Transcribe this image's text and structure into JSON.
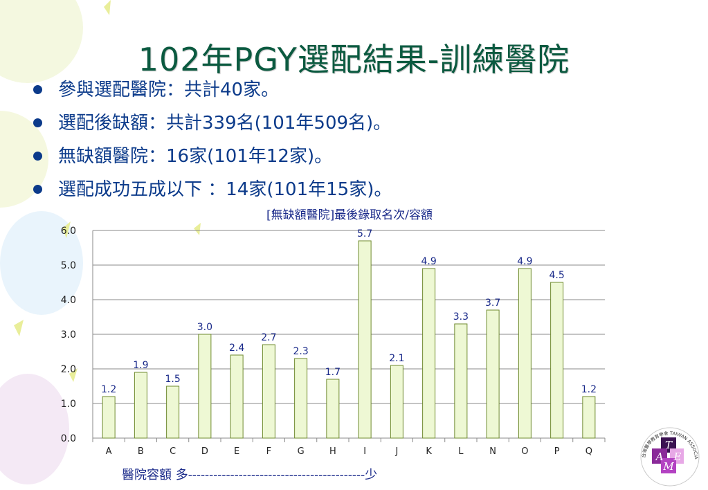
{
  "slide": {
    "title": "102年PGY選配結果-訓練醫院",
    "bullets": [
      "參與選配醫院：共計40家。",
      "選配後缺額：共計339名(101年509名)。",
      "無缺額醫院：16家(101年12家)。",
      "選配成功五成以下 ：14家(101年15家)。"
    ],
    "footnote": "醫院容額 多------------------------------------------少",
    "bullet_color": "#0b3a8a",
    "title_color": "#0b5a40"
  },
  "logo": {
    "letters": [
      "T",
      "A",
      "M",
      "E"
    ],
    "caption": "台灣醫學教育學會 TAIWAN ASSOCIATION OF MEDICAL EDUCATION"
  },
  "chart_data": {
    "type": "bar",
    "title": "[無缺額醫院]最後錄取名次/容額",
    "categories": [
      "A",
      "B",
      "C",
      "D",
      "E",
      "F",
      "G",
      "H",
      "I",
      "J",
      "K",
      "L",
      "N",
      "O",
      "P",
      "Q"
    ],
    "values": [
      1.2,
      1.9,
      1.5,
      3.0,
      2.4,
      2.7,
      2.3,
      1.7,
      5.7,
      2.1,
      4.9,
      3.3,
      3.7,
      4.9,
      4.5,
      1.2
    ],
    "ylim": [
      0,
      6
    ],
    "yticks": [
      "0.0",
      "1.0",
      "2.0",
      "3.0",
      "4.0",
      "5.0",
      "6.0"
    ],
    "grid": true,
    "bar_color": "#eef8d4",
    "bar_edge_color": "#6f8a2e",
    "label_color": "#1a2a8a"
  }
}
